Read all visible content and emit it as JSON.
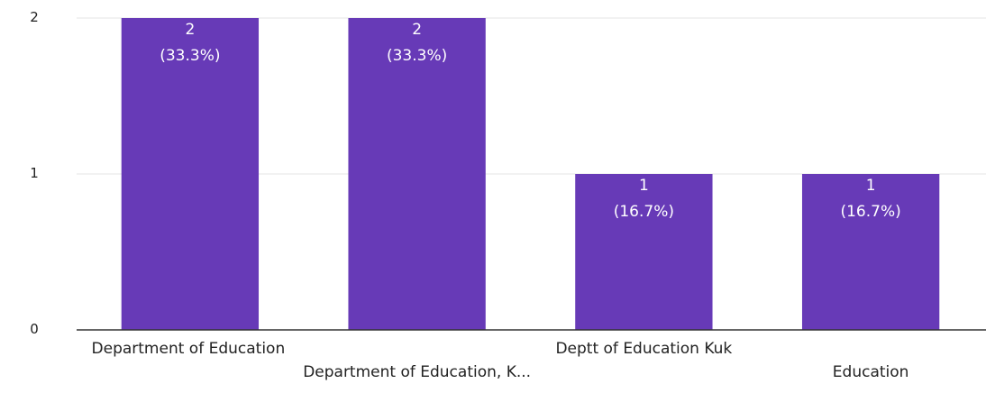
{
  "chart_data": {
    "type": "bar",
    "categories": [
      "Department of Education",
      "Department of Education, K...",
      "Deptt of Education Kuk",
      "Education"
    ],
    "values": [
      2,
      2,
      1,
      1
    ],
    "data_labels": [
      [
        "2",
        "(33.3%)"
      ],
      [
        "2",
        "(33.3%)"
      ],
      [
        "1",
        "(16.7%)"
      ],
      [
        "1",
        "(16.7%)"
      ]
    ],
    "y_ticks": [
      "0",
      "1",
      "2"
    ],
    "ylim": [
      0,
      2
    ],
    "grid": true,
    "bar_color": "#673ab7",
    "title": "",
    "xlabel": "",
    "ylabel": ""
  }
}
